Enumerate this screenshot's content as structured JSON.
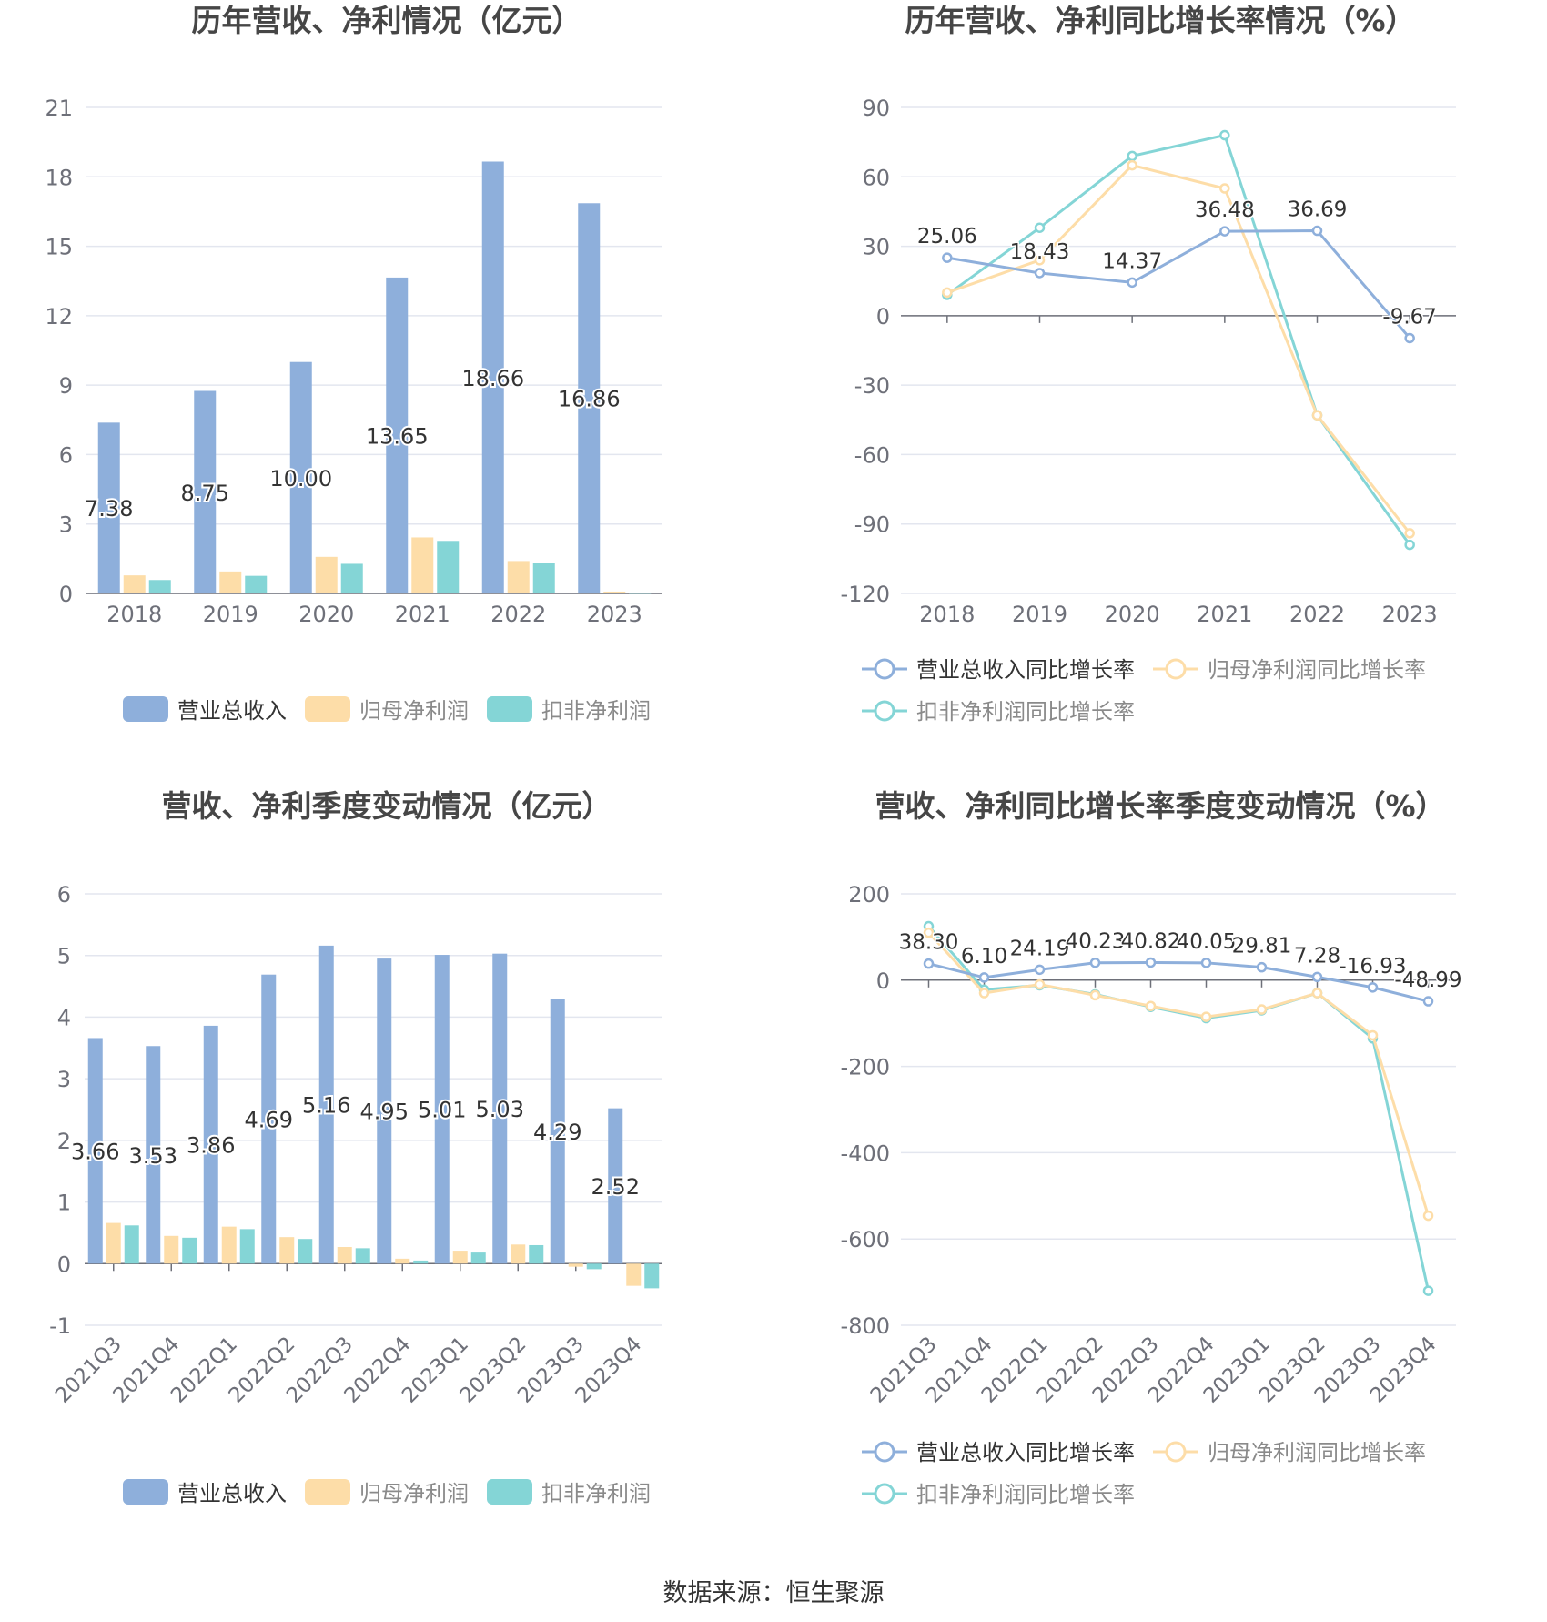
{
  "source": "数据来源：恒生聚源",
  "colors": {
    "revenue": "#8EAFDB",
    "parent_profit": "#FDDDA8",
    "deducted_profit": "#84D5D6",
    "grid": "#E3E6EF",
    "axis_text": "#6E7079",
    "label_text": "#333333",
    "title_text": "#464646"
  },
  "chart_data": [
    {
      "type": "bar",
      "title": "历年营收、净利情况（亿元）",
      "categories": [
        "2018",
        "2019",
        "2020",
        "2021",
        "2022",
        "2023"
      ],
      "ylim": [
        0,
        21
      ],
      "yticks": [
        "0",
        "3",
        "6",
        "9",
        "12",
        "15",
        "18",
        "21"
      ],
      "tick_values": [
        0,
        3,
        6,
        9,
        12,
        15,
        18,
        21
      ],
      "grid": true,
      "legend_position": "bottom",
      "series": [
        {
          "name": "营业总收入",
          "values": [
            7.38,
            8.75,
            10.0,
            13.65,
            18.66,
            16.86
          ],
          "labels": [
            "7.38",
            "8.75",
            "10.00",
            "13.65",
            "18.66",
            "16.86"
          ],
          "color": "#8EAFDB"
        },
        {
          "name": "归母净利润",
          "values": [
            0.78,
            0.95,
            1.58,
            2.42,
            1.4,
            0.08
          ],
          "color": "#FDDDA8"
        },
        {
          "name": "扣非净利润",
          "values": [
            0.58,
            0.76,
            1.28,
            2.27,
            1.32,
            0.02
          ],
          "color": "#84D5D6"
        }
      ]
    },
    {
      "type": "line",
      "title": "历年营收、净利同比增长率情况（%）",
      "categories": [
        "2018",
        "2019",
        "2020",
        "2021",
        "2022",
        "2023"
      ],
      "ylim": [
        -120,
        90
      ],
      "yticks": [
        "-120",
        "-90",
        "-60",
        "-30",
        "0",
        "30",
        "60",
        "90"
      ],
      "tick_values": [
        -120,
        -90,
        -60,
        -30,
        0,
        30,
        60,
        90
      ],
      "grid": true,
      "legend_position": "bottom",
      "series": [
        {
          "name": "营业总收入同比增长率",
          "values": [
            25.06,
            18.43,
            14.37,
            36.48,
            36.69,
            -9.67
          ],
          "labels": [
            "25.06",
            "18.43",
            "14.37",
            "36.48",
            "36.69",
            "-9.67"
          ],
          "color": "#8EAFDB"
        },
        {
          "name": "归母净利润同比增长率",
          "values": [
            10,
            24,
            65,
            55,
            -43,
            -94
          ],
          "color": "#FDDDA8"
        },
        {
          "name": "扣非净利润同比增长率",
          "values": [
            9,
            38,
            69,
            78,
            -43,
            -99
          ],
          "color": "#84D5D6"
        }
      ]
    },
    {
      "type": "bar",
      "title": "营收、净利季度变动情况（亿元）",
      "categories": [
        "2021Q3",
        "2021Q4",
        "2022Q1",
        "2022Q2",
        "2022Q3",
        "2022Q4",
        "2023Q1",
        "2023Q2",
        "2023Q3",
        "2023Q4"
      ],
      "ylim": [
        -1,
        6
      ],
      "yticks": [
        "-1",
        "0",
        "1",
        "2",
        "3",
        "4",
        "5",
        "6"
      ],
      "tick_values": [
        -1,
        0,
        1,
        2,
        3,
        4,
        5,
        6
      ],
      "grid": true,
      "legend_position": "bottom",
      "series": [
        {
          "name": "营业总收入",
          "values": [
            3.66,
            3.53,
            3.86,
            4.69,
            5.16,
            4.95,
            5.01,
            5.03,
            4.29,
            2.52
          ],
          "labels": [
            "3.66",
            "3.53",
            "3.86",
            "4.69",
            "5.16",
            "4.95",
            "5.01",
            "5.03",
            "4.29",
            "2.52"
          ],
          "color": "#8EAFDB"
        },
        {
          "name": "归母净利润",
          "values": [
            0.66,
            0.45,
            0.6,
            0.43,
            0.27,
            0.08,
            0.21,
            0.31,
            -0.05,
            -0.36
          ],
          "color": "#FDDDA8"
        },
        {
          "name": "扣非净利润",
          "values": [
            0.62,
            0.42,
            0.56,
            0.4,
            0.25,
            0.05,
            0.18,
            0.3,
            -0.09,
            -0.4
          ],
          "color": "#84D5D6"
        }
      ]
    },
    {
      "type": "line",
      "title": "营收、净利同比增长率季度变动情况（%）",
      "categories": [
        "2021Q3",
        "2021Q4",
        "2022Q1",
        "2022Q2",
        "2022Q3",
        "2022Q4",
        "2023Q1",
        "2023Q2",
        "2023Q3",
        "2023Q4"
      ],
      "ylim": [
        -800,
        200
      ],
      "yticks": [
        "-800",
        "-600",
        "-400",
        "-200",
        "0",
        "200"
      ],
      "tick_values": [
        -800,
        -600,
        -400,
        -200,
        0,
        200
      ],
      "grid": true,
      "legend_position": "bottom",
      "series": [
        {
          "name": "营业总收入同比增长率",
          "values": [
            38.3,
            6.1,
            24.19,
            40.23,
            40.82,
            40.05,
            29.81,
            7.28,
            -16.93,
            -48.99
          ],
          "labels": [
            "38.30",
            "6.10",
            "24.19",
            "40.23",
            "40.82",
            "40.05",
            "29.81",
            "7.28",
            "-16.93",
            "-48.99"
          ],
          "color": "#8EAFDB"
        },
        {
          "name": "归母净利润同比增长率",
          "values": [
            110,
            -30,
            -10,
            -35,
            -60,
            -85,
            -68,
            -30,
            -128,
            -546
          ],
          "color": "#FDDDA8"
        },
        {
          "name": "扣非净利润同比增长率",
          "values": [
            125,
            -22,
            -12,
            -33,
            -62,
            -88,
            -70,
            -30,
            -135,
            -720
          ],
          "color": "#84D5D6"
        }
      ]
    }
  ]
}
